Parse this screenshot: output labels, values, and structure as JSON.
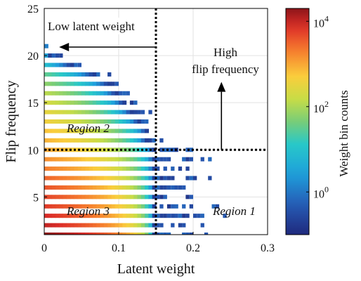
{
  "chart_data": {
    "type": "heatmap",
    "xlabel": "Latent weight",
    "ylabel": "Flip frequency",
    "xlim": [
      0,
      0.3
    ],
    "ylim": [
      1,
      25
    ],
    "x_ticks": [
      0,
      0.1,
      0.2,
      0.3
    ],
    "x_tick_labels": [
      "0",
      "0.1",
      "0.2",
      "0.3"
    ],
    "y_ticks": [
      5,
      10,
      15,
      20,
      25
    ],
    "y_tick_labels": [
      "5",
      "10",
      "15",
      "20",
      "25"
    ],
    "grid": true,
    "colorscale": "jet-like",
    "colorbar": {
      "label": "Weight bin counts",
      "scale": "log",
      "min": 0.1,
      "max": 20000,
      "ticks": [
        1,
        100,
        10000
      ],
      "tick_labels": [
        {
          "base": "10",
          "exp": "0"
        },
        {
          "base": "10",
          "exp": "2"
        },
        {
          "base": "10",
          "exp": "4"
        }
      ]
    },
    "rows": [
      {
        "flip": 1,
        "fill_to": 0.15,
        "max_count": 20000,
        "scatter_to": 0.22
      },
      {
        "flip": 2,
        "fill_to": 0.15,
        "max_count": 10000,
        "scatter_to": 0.23
      },
      {
        "flip": 3,
        "fill_to": 0.15,
        "max_count": 8000,
        "scatter_to": 0.27
      },
      {
        "flip": 4,
        "fill_to": 0.15,
        "max_count": 6000,
        "scatter_to": 0.26
      },
      {
        "flip": 5,
        "fill_to": 0.15,
        "max_count": 5000,
        "scatter_to": 0.22
      },
      {
        "flip": 6,
        "fill_to": 0.15,
        "max_count": 4000,
        "scatter_to": 0.23
      },
      {
        "flip": 7,
        "fill_to": 0.15,
        "max_count": 3000,
        "scatter_to": 0.24
      },
      {
        "flip": 8,
        "fill_to": 0.15,
        "max_count": 2000,
        "scatter_to": 0.21
      },
      {
        "flip": 9,
        "fill_to": 0.15,
        "max_count": 1500,
        "scatter_to": 0.24
      },
      {
        "flip": 10,
        "fill_to": 0.15,
        "max_count": 1000,
        "scatter_to": 0.22
      },
      {
        "flip": 11,
        "fill_to": 0.14,
        "max_count": 800,
        "scatter_to": 0.16
      },
      {
        "flip": 12,
        "fill_to": 0.14,
        "max_count": 600,
        "scatter_to": 0.15
      },
      {
        "flip": 13,
        "fill_to": 0.13,
        "max_count": 400,
        "scatter_to": 0.15
      },
      {
        "flip": 14,
        "fill_to": 0.12,
        "max_count": 300,
        "scatter_to": 0.15
      },
      {
        "flip": 15,
        "fill_to": 0.11,
        "max_count": 200,
        "scatter_to": 0.13
      },
      {
        "flip": 16,
        "fill_to": 0.1,
        "max_count": 120,
        "scatter_to": 0.12
      },
      {
        "flip": 17,
        "fill_to": 0.09,
        "max_count": 60,
        "scatter_to": 0.11
      },
      {
        "flip": 18,
        "fill_to": 0.07,
        "max_count": 30,
        "scatter_to": 0.09
      },
      {
        "flip": 19,
        "fill_to": 0.04,
        "max_count": 8,
        "scatter_to": 0.08
      },
      {
        "flip": 20,
        "fill_to": 0.01,
        "max_count": 3,
        "scatter_to": 0.03
      },
      {
        "flip": 21,
        "fill_to": 0.005,
        "max_count": 1,
        "scatter_to": 0.005
      }
    ],
    "thresholds": {
      "latent_weight": 0.15,
      "flip_frequency": 10
    },
    "annotations": [
      {
        "text": "Low latent weight",
        "arrow_from": [
          0.15,
          20.9
        ],
        "arrow_to": [
          0.02,
          20.9
        ]
      },
      {
        "text_lines": [
          "High",
          "flip frequency"
        ],
        "arrow_from": [
          0.238,
          10
        ],
        "arrow_to": [
          0.238,
          17.2
        ]
      }
    ],
    "region_labels": [
      "Region 1",
      "Region 2",
      "Region 3"
    ]
  }
}
